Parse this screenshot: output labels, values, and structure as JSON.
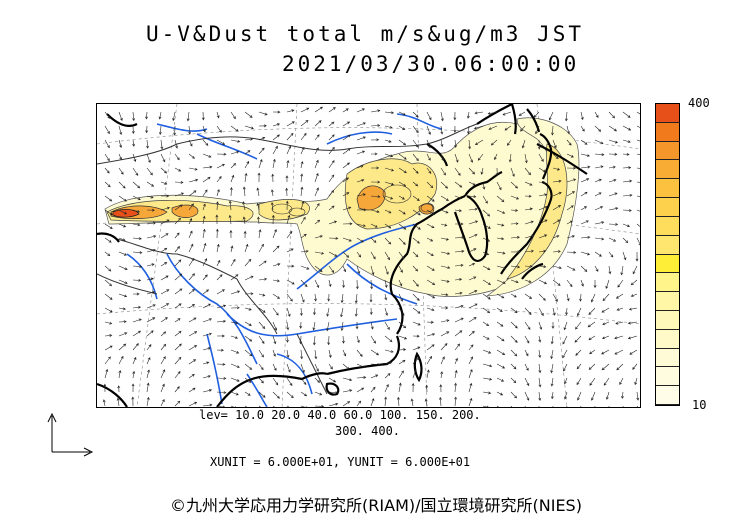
{
  "title": {
    "line1": "U-V&Dust total m/s&ug/m3 JST",
    "line2": "2021/03/30.06:00:00"
  },
  "colorbar": {
    "max_label": "400",
    "min_label": "10",
    "colors_top_to_bottom": [
      "#e8501a",
      "#f07a1c",
      "#f4962a",
      "#f8ac34",
      "#fcc13e",
      "#fdd14c",
      "#fedc5c",
      "#ffe66e",
      "#ffee38",
      "#fff48a",
      "#fff6a6",
      "#fff8b8",
      "#fffac8",
      "#fffbd6",
      "#fffce0",
      "#fffde8"
    ]
  },
  "levels": {
    "line1": "lev= 10.0 20.0 40.0 60.0 100. 150. 200.",
    "line2": "300. 400."
  },
  "units": "XUNIT = 6.000E+01, YUNIT = 6.000E+01",
  "copyright": "©九州大学応用力学研究所(RIAM)/国立環境研究所(NIES)",
  "map": {
    "region": "East Asia",
    "colors": {
      "coast": "#000000",
      "rivers": "#1f5fe0",
      "borders": "#333333",
      "dust_low": "#fffbd0",
      "dust_mid": "#fde98a",
      "dust_high": "#f6a73a",
      "dust_peak": "#e8501a",
      "arrows": "#222222"
    }
  }
}
